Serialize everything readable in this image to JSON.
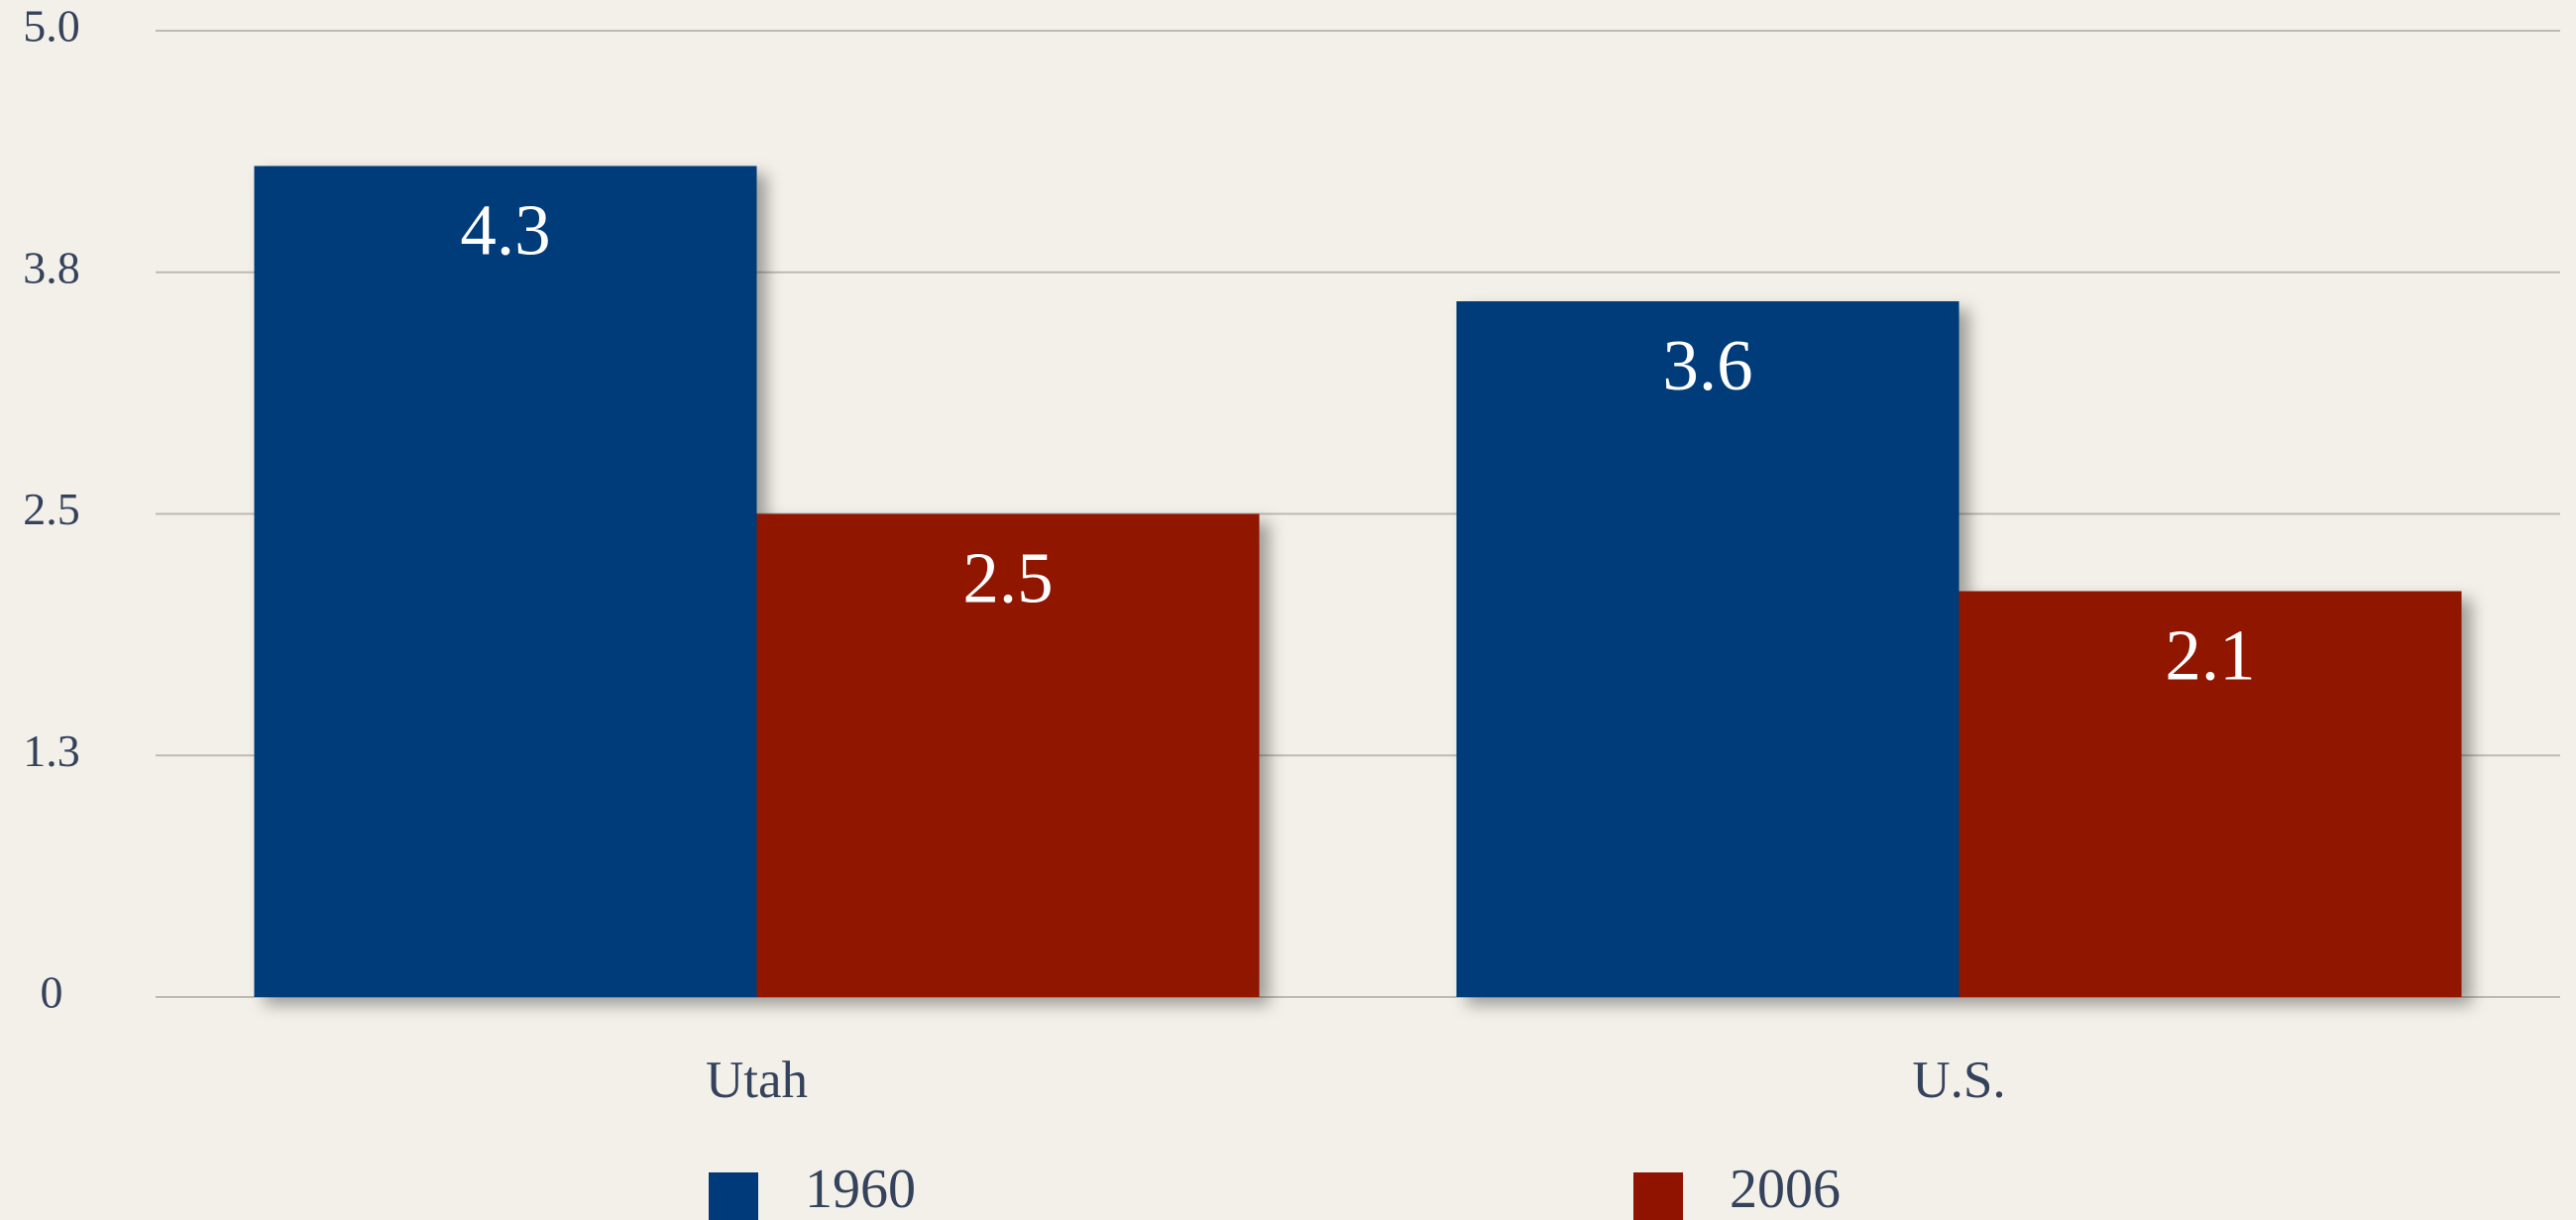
{
  "chart_data": {
    "type": "bar",
    "categories": [
      "Utah",
      "U.S."
    ],
    "series": [
      {
        "name": "1960",
        "color": "#003a7a",
        "values": [
          4.3,
          3.6
        ]
      },
      {
        "name": "2006",
        "color": "#901300",
        "values": [
          2.5,
          2.1
        ]
      }
    ],
    "ylim": [
      0,
      5
    ],
    "yticks": [
      0,
      {
        "value": 1.25,
        "label": "1.3"
      },
      2.5,
      {
        "value": 3.75,
        "label": "3.8"
      },
      {
        "value": 5,
        "label": "5.0"
      }
    ],
    "grid": true,
    "legend": "bottom"
  }
}
